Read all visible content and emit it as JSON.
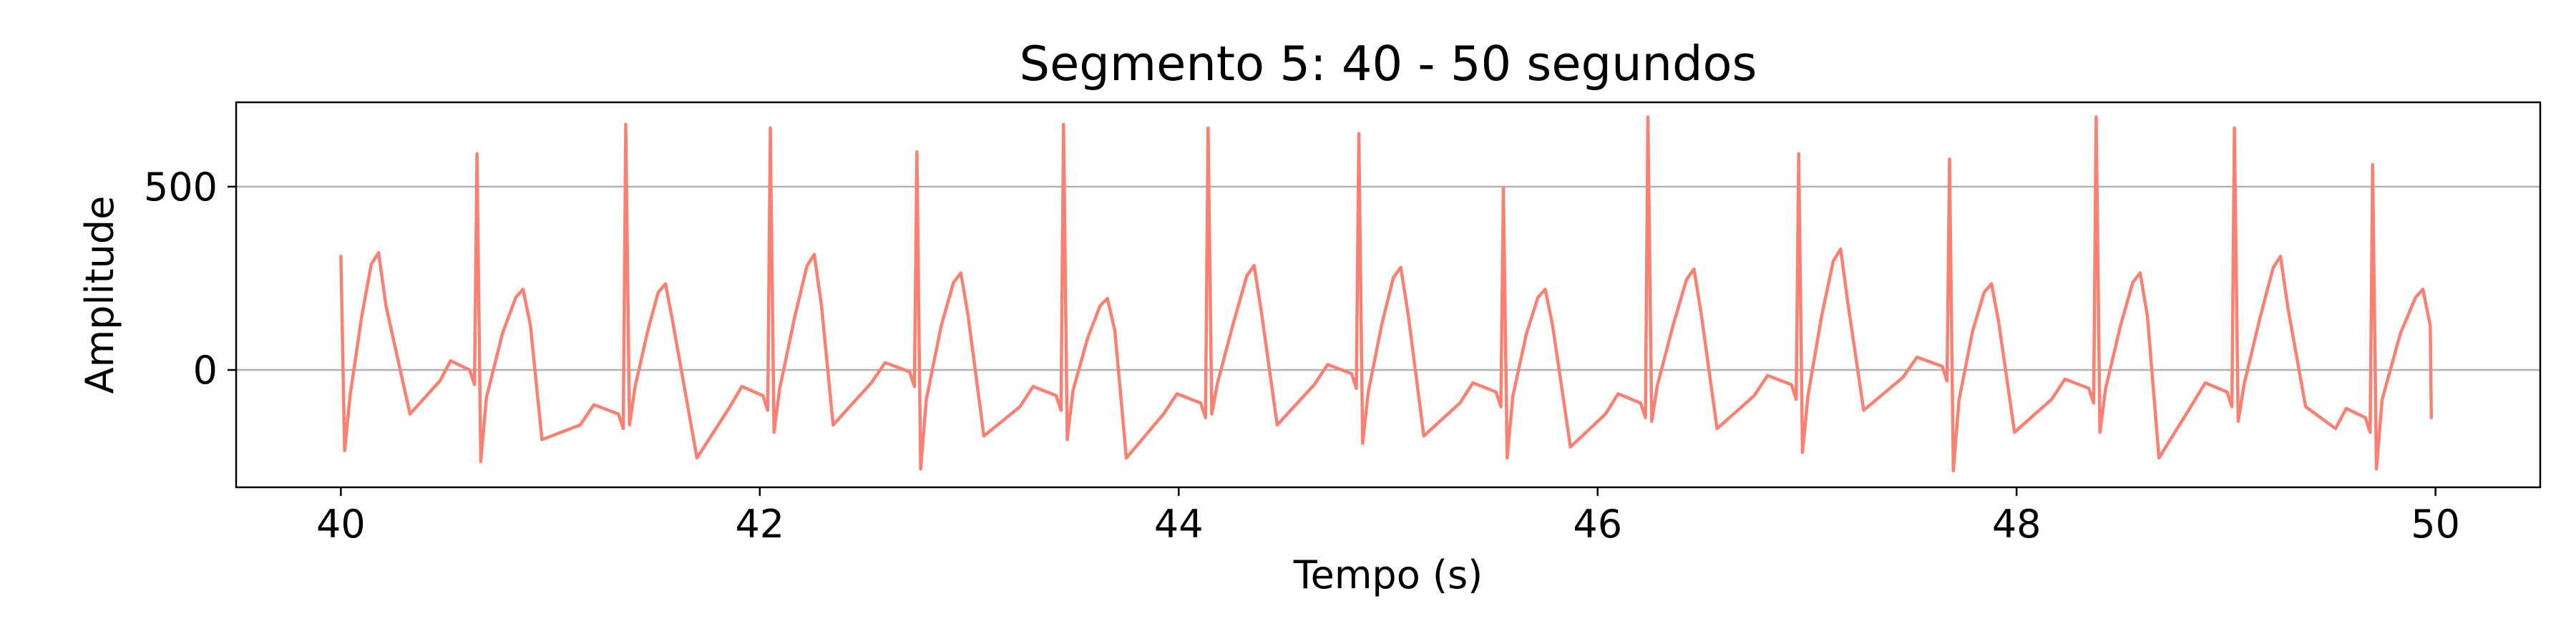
{
  "chart_data": {
    "type": "line",
    "title": "Segmento 5: 40 - 50 segundos",
    "xlabel": "Tempo (s)",
    "ylabel": "Amplitude",
    "xlim": [
      39.5,
      50.5
    ],
    "ylim": [
      -320,
      730
    ],
    "xticks": [
      40,
      42,
      44,
      46,
      48,
      50
    ],
    "yticks": [
      0,
      500
    ],
    "grid": "horizontal",
    "legend": "none",
    "color": "#fa8072",
    "series": [
      {
        "beats": [
          {
            "r": 40.0,
            "peak": 310,
            "s": -220,
            "t": 40.18,
            "tAmp": 320,
            "tMin": 40.33,
            "tMinAmp": -120,
            "iso": -55
          },
          {
            "r": 40.65,
            "peak": 590,
            "s": -250,
            "t": 40.87,
            "tAmp": 220,
            "tMin": 40.96,
            "tMinAmp": -190,
            "iso": 0
          },
          {
            "r": 41.36,
            "peak": 670,
            "s": -150,
            "t": 41.55,
            "tAmp": 235,
            "tMin": 41.7,
            "tMinAmp": -240,
            "iso": -120
          },
          {
            "r": 42.05,
            "peak": 660,
            "s": -170,
            "t": 42.26,
            "tAmp": 315,
            "tMin": 42.35,
            "tMinAmp": -150,
            "iso": -70
          },
          {
            "r": 42.75,
            "peak": 595,
            "s": -270,
            "t": 42.96,
            "tAmp": 265,
            "tMin": 43.07,
            "tMinAmp": -180,
            "iso": -5
          },
          {
            "r": 43.45,
            "peak": 670,
            "s": -190,
            "t": 43.66,
            "tAmp": 195,
            "tMin": 43.75,
            "tMinAmp": -240,
            "iso": -70
          },
          {
            "r": 44.14,
            "peak": 660,
            "s": -120,
            "t": 44.36,
            "tAmp": 285,
            "tMin": 44.47,
            "tMinAmp": -150,
            "iso": -90
          },
          {
            "r": 44.86,
            "peak": 645,
            "s": -200,
            "t": 45.06,
            "tAmp": 280,
            "tMin": 45.17,
            "tMinAmp": -180,
            "iso": -10
          },
          {
            "r": 45.55,
            "peak": 495,
            "s": -240,
            "t": 45.75,
            "tAmp": 220,
            "tMin": 45.87,
            "tMinAmp": -210,
            "iso": -60
          },
          {
            "r": 46.24,
            "peak": 690,
            "s": -140,
            "t": 46.46,
            "tAmp": 275,
            "tMin": 46.57,
            "tMinAmp": -160,
            "iso": -90
          },
          {
            "r": 46.96,
            "peak": 590,
            "s": -225,
            "t": 47.16,
            "tAmp": 330,
            "tMin": 47.27,
            "tMinAmp": -110,
            "iso": -40
          },
          {
            "r": 47.68,
            "peak": 575,
            "s": -275,
            "t": 47.88,
            "tAmp": 235,
            "tMin": 47.99,
            "tMinAmp": -170,
            "iso": 10
          },
          {
            "r": 48.38,
            "peak": 690,
            "s": -170,
            "t": 48.59,
            "tAmp": 265,
            "tMin": 48.68,
            "tMinAmp": -240,
            "iso": -50
          },
          {
            "r": 49.04,
            "peak": 660,
            "s": -140,
            "t": 49.26,
            "tAmp": 310,
            "tMin": 49.38,
            "tMinAmp": -100,
            "iso": -60
          },
          {
            "r": 49.7,
            "peak": 560,
            "s": -270,
            "t": 49.94,
            "tAmp": 220,
            "tMin": 49.98,
            "tMinAmp": -130,
            "iso": -130
          }
        ]
      }
    ]
  }
}
